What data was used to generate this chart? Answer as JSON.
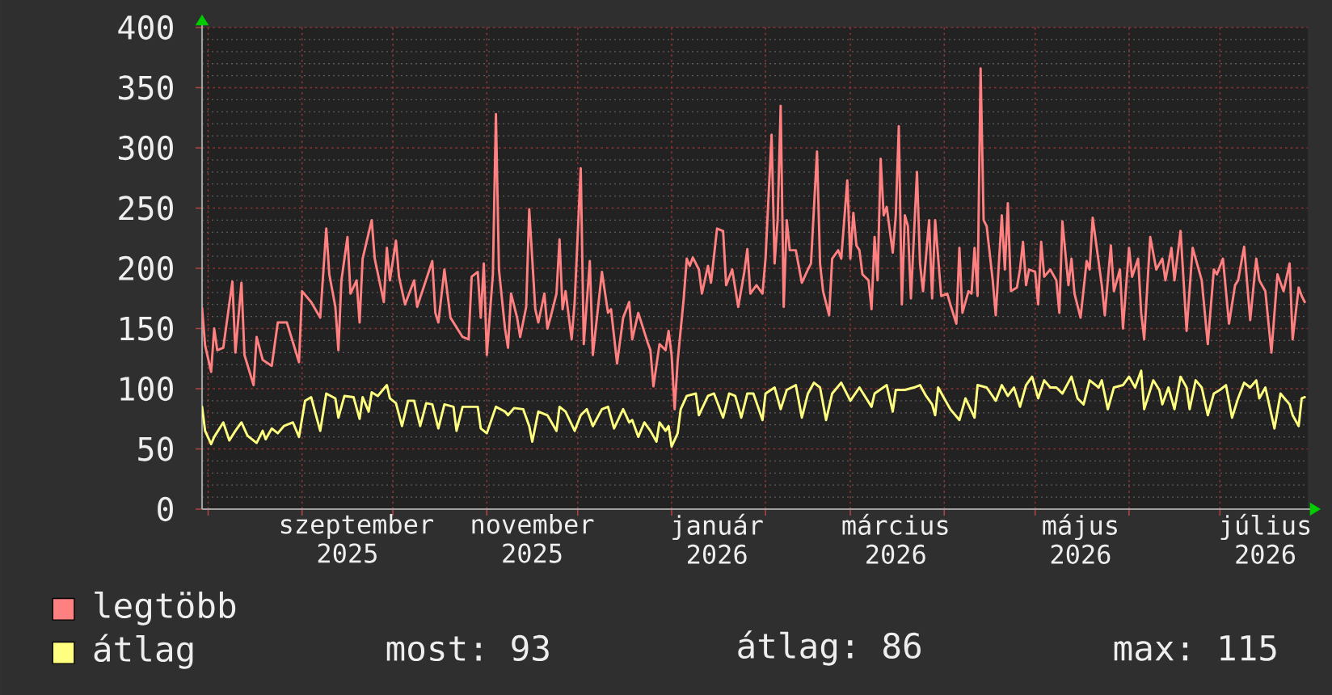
{
  "chart_data": {
    "type": "line",
    "xlim": [
      "2025-07-30",
      "2026-07-30"
    ],
    "xticks": [
      {
        "value": "2025-08-01",
        "label": null
      },
      {
        "value": "2025-09-01",
        "label": null
      },
      {
        "value": "2025-09-16",
        "label": "szeptember 2025"
      },
      {
        "value": "2025-10-01",
        "label": null
      },
      {
        "value": "2025-11-01",
        "label": null
      },
      {
        "value": "2025-11-16",
        "label": "november 2025"
      },
      {
        "value": "2025-12-01",
        "label": null
      },
      {
        "value": "2026-01-01",
        "label": null
      },
      {
        "value": "2026-01-16",
        "label": "január 2026"
      },
      {
        "value": "2026-02-01",
        "label": null
      },
      {
        "value": "2026-03-01",
        "label": null
      },
      {
        "value": "2026-03-16",
        "label": "március 2026"
      },
      {
        "value": "2026-04-01",
        "label": null
      },
      {
        "value": "2026-05-01",
        "label": null
      },
      {
        "value": "2026-05-16",
        "label": "május 2026"
      },
      {
        "value": "2026-06-01",
        "label": null
      },
      {
        "value": "2026-07-01",
        "label": null
      },
      {
        "value": "2026-07-16",
        "label": "július 2026"
      }
    ],
    "ylim": [
      0,
      400
    ],
    "yticks": [
      0,
      50,
      100,
      150,
      200,
      250,
      300,
      350,
      400
    ],
    "grid": true,
    "legend": "bottom left",
    "series": [
      {
        "name": "legtöbb",
        "color": "#ff8080",
        "x": [
          "2025-07-30",
          "2025-07-31",
          "2025-08-02",
          "2025-08-03",
          "2025-08-04",
          "2025-08-06",
          "2025-08-09",
          "2025-08-10",
          "2025-08-12",
          "2025-08-13",
          "2025-08-16",
          "2025-08-17",
          "2025-08-19",
          "2025-08-22",
          "2025-08-24",
          "2025-08-27",
          "2025-08-31",
          "2025-09-01",
          "2025-09-04",
          "2025-09-07",
          "2025-09-09",
          "2025-09-10",
          "2025-09-12",
          "2025-09-13",
          "2025-09-14",
          "2025-09-16",
          "2025-09-17",
          "2025-09-19",
          "2025-09-20",
          "2025-09-21",
          "2025-09-24",
          "2025-09-25",
          "2025-09-28",
          "2025-09-29",
          "2025-09-30",
          "2025-10-02",
          "2025-10-03",
          "2025-10-05",
          "2025-10-08",
          "2025-10-09",
          "2025-10-14",
          "2025-10-15",
          "2025-10-16",
          "2025-10-18",
          "2025-10-20",
          "2025-10-24",
          "2025-10-26",
          "2025-10-27",
          "2025-10-29",
          "2025-10-30",
          "2025-10-31",
          "2025-11-01",
          "2025-11-03",
          "2025-11-04",
          "2025-11-05",
          "2025-11-07",
          "2025-11-08",
          "2025-11-09",
          "2025-11-11",
          "2025-11-12",
          "2025-11-14",
          "2025-11-15",
          "2025-11-17",
          "2025-11-18",
          "2025-11-20",
          "2025-11-21",
          "2025-11-22",
          "2025-11-24",
          "2025-11-25",
          "2025-11-26",
          "2025-11-27",
          "2025-11-29",
          "2025-11-30",
          "2025-12-02",
          "2025-12-03",
          "2025-12-05",
          "2025-12-06",
          "2025-12-09",
          "2025-12-11",
          "2025-12-12",
          "2025-12-14",
          "2025-12-16",
          "2025-12-18",
          "2025-12-19",
          "2025-12-21",
          "2025-12-24",
          "2025-12-25",
          "2025-12-26",
          "2025-12-28",
          "2025-12-30",
          "2025-12-31",
          "2026-01-01",
          "2026-01-02",
          "2026-01-03",
          "2026-01-05",
          "2026-01-06",
          "2026-01-07",
          "2026-01-08",
          "2026-01-10",
          "2026-01-11",
          "2026-01-13",
          "2026-01-14",
          "2026-01-16",
          "2026-01-18",
          "2026-01-19",
          "2026-01-21",
          "2026-01-23",
          "2026-01-25",
          "2026-01-26",
          "2026-01-27",
          "2026-01-29",
          "2026-01-31",
          "2026-02-01",
          "2026-02-03",
          "2026-02-04",
          "2026-02-05",
          "2026-02-06",
          "2026-02-07",
          "2026-02-08",
          "2026-02-09",
          "2026-02-11",
          "2026-02-13",
          "2026-02-15",
          "2026-02-16",
          "2026-02-18",
          "2026-02-19",
          "2026-02-20",
          "2026-02-22",
          "2026-02-23",
          "2026-02-25",
          "2026-02-26",
          "2026-02-28",
          "2026-03-01",
          "2026-03-02",
          "2026-03-03",
          "2026-03-04",
          "2026-03-05",
          "2026-03-07",
          "2026-03-08",
          "2026-03-09",
          "2026-03-10",
          "2026-03-11",
          "2026-03-12",
          "2026-03-13",
          "2026-03-15",
          "2026-03-16",
          "2026-03-17",
          "2026-03-18",
          "2026-03-19",
          "2026-03-20",
          "2026-03-21",
          "2026-03-23",
          "2026-03-24",
          "2026-03-25",
          "2026-03-27",
          "2026-03-28",
          "2026-03-29",
          "2026-03-31",
          "2026-04-02",
          "2026-04-03",
          "2026-04-05",
          "2026-04-06",
          "2026-04-07",
          "2026-04-09",
          "2026-04-10",
          "2026-04-11",
          "2026-04-12",
          "2026-04-13",
          "2026-04-14",
          "2026-04-15",
          "2026-04-17",
          "2026-04-18",
          "2026-04-20",
          "2026-04-21",
          "2026-04-22",
          "2026-04-23",
          "2026-04-25",
          "2026-04-26",
          "2026-04-27",
          "2026-04-28",
          "2026-04-29",
          "2026-05-01",
          "2026-05-02",
          "2026-05-03",
          "2026-05-04",
          "2026-05-06",
          "2026-05-08",
          "2026-05-09",
          "2026-05-10",
          "2026-05-12",
          "2026-05-13",
          "2026-05-14",
          "2026-05-16",
          "2026-05-18",
          "2026-05-19",
          "2026-05-20",
          "2026-05-23",
          "2026-05-24",
          "2026-05-26",
          "2026-05-27",
          "2026-05-29",
          "2026-05-30",
          "2026-06-01",
          "2026-06-02",
          "2026-06-04",
          "2026-06-05",
          "2026-06-06",
          "2026-06-08",
          "2026-06-10",
          "2026-06-12",
          "2026-06-13",
          "2026-06-15",
          "2026-06-16",
          "2026-06-18",
          "2026-06-19",
          "2026-06-20",
          "2026-06-22",
          "2026-06-23",
          "2026-06-25",
          "2026-06-27",
          "2026-06-29",
          "2026-06-30",
          "2026-07-02",
          "2026-07-04",
          "2026-07-06",
          "2026-07-07",
          "2026-07-09",
          "2026-07-11",
          "2026-07-13",
          "2026-07-14",
          "2026-07-16",
          "2026-07-18",
          "2026-07-20",
          "2026-07-22",
          "2026-07-24",
          "2026-07-25",
          "2026-07-27",
          "2026-07-28",
          "2026-07-29"
        ],
        "values": [
          167,
          136,
          114,
          150,
          132,
          134,
          189,
          130,
          188,
          128,
          103,
          143,
          124,
          119,
          155,
          155,
          122,
          181,
          172,
          159,
          233,
          195,
          168,
          132,
          190,
          226,
          179,
          190,
          155,
          208,
          240,
          208,
          172,
          217,
          190,
          223,
          193,
          170,
          190,
          168,
          206,
          163,
          155,
          199,
          159,
          143,
          141,
          193,
          197,
          159,
          204,
          128,
          195,
          328,
          199,
          150,
          134,
          179,
          159,
          143,
          168,
          249,
          166,
          155,
          179,
          150,
          159,
          179,
          224,
          166,
          181,
          141,
          172,
          283,
          137,
          206,
          128,
          197,
          163,
          166,
          121,
          159,
          172,
          141,
          163,
          139,
          132,
          102,
          137,
          132,
          148,
          128,
          83,
          123,
          175,
          208,
          202,
          209,
          199,
          179,
          202,
          188,
          233,
          231,
          186,
          199,
          168,
          197,
          216,
          179,
          186,
          179,
          208,
          311,
          204,
          240,
          335,
          168,
          240,
          215,
          215,
          188,
          199,
          204,
          297,
          204,
          181,
          161,
          208,
          215,
          208,
          273,
          208,
          246,
          219,
          215,
          195,
          190,
          166,
          226,
          190,
          291,
          244,
          251,
          213,
          244,
          318,
          170,
          244,
          235,
          175,
          280,
          204,
          181,
          240,
          175,
          240,
          177,
          179,
          170,
          154,
          217,
          163,
          181,
          179,
          217,
          177,
          366,
          240,
          235,
          190,
          161,
          244,
          199,
          254,
          181,
          184,
          199,
          222,
          186,
          199,
          197,
          170,
          222,
          193,
          199,
          190,
          163,
          239,
          186,
          208,
          179,
          159,
          206,
          199,
          242,
          186,
          161,
          219,
          181,
          199,
          150,
          217,
          193,
          208,
          163,
          141,
          226,
          199,
          208,
          190,
          217,
          190,
          231,
          190,
          148,
          217,
          208,
          190,
          137,
          199,
          195,
          208,
          154,
          186,
          190,
          218,
          157,
          208,
          190,
          181,
          130,
          195,
          181,
          204,
          141,
          184,
          177,
          172
        ]
      },
      {
        "name": "átlag",
        "color": "#ffff80",
        "x": [
          "2025-07-30",
          "2025-07-31",
          "2025-08-02",
          "2025-08-03",
          "2025-08-06",
          "2025-08-08",
          "2025-08-10",
          "2025-08-12",
          "2025-08-14",
          "2025-08-17",
          "2025-08-19",
          "2025-08-20",
          "2025-08-22",
          "2025-08-24",
          "2025-08-26",
          "2025-08-29",
          "2025-08-31",
          "2025-09-02",
          "2025-09-04",
          "2025-09-07",
          "2025-09-09",
          "2025-09-12",
          "2025-09-13",
          "2025-09-15",
          "2025-09-18",
          "2025-09-20",
          "2025-09-21",
          "2025-09-23",
          "2025-09-24",
          "2025-09-26",
          "2025-09-29",
          "2025-09-30",
          "2025-10-02",
          "2025-10-04",
          "2025-10-06",
          "2025-10-08",
          "2025-10-10",
          "2025-10-12",
          "2025-10-14",
          "2025-10-16",
          "2025-10-18",
          "2025-10-21",
          "2025-10-22",
          "2025-10-24",
          "2025-10-27",
          "2025-10-29",
          "2025-10-30",
          "2025-11-01",
          "2025-11-04",
          "2025-11-07",
          "2025-11-08",
          "2025-11-10",
          "2025-11-13",
          "2025-11-15",
          "2025-11-16",
          "2025-11-18",
          "2025-11-21",
          "2025-11-24",
          "2025-11-25",
          "2025-11-27",
          "2025-11-30",
          "2025-12-02",
          "2025-12-04",
          "2025-12-06",
          "2025-12-09",
          "2025-12-11",
          "2025-12-13",
          "2025-12-16",
          "2025-12-18",
          "2025-12-19",
          "2025-12-21",
          "2025-12-23",
          "2025-12-25",
          "2025-12-27",
          "2025-12-28",
          "2025-12-30",
          "2025-12-31",
          "2026-01-01",
          "2026-01-03",
          "2026-01-04",
          "2026-01-06",
          "2026-01-09",
          "2026-01-10",
          "2026-01-13",
          "2026-01-15",
          "2026-01-18",
          "2026-01-20",
          "2026-01-22",
          "2026-01-24",
          "2026-01-26",
          "2026-01-28",
          "2026-01-31",
          "2026-02-01",
          "2026-02-04",
          "2026-02-06",
          "2026-02-08",
          "2026-02-11",
          "2026-02-13",
          "2026-02-15",
          "2026-02-17",
          "2026-02-19",
          "2026-02-21",
          "2026-02-23",
          "2026-02-26",
          "2026-03-01",
          "2026-03-04",
          "2026-03-08",
          "2026-03-09",
          "2026-03-13",
          "2026-03-15",
          "2026-03-16",
          "2026-03-19",
          "2026-03-22",
          "2026-03-24",
          "2026-03-26",
          "2026-03-28",
          "2026-03-29",
          "2026-03-30",
          "2026-04-01",
          "2026-04-03",
          "2026-04-06",
          "2026-04-08",
          "2026-04-11",
          "2026-04-12",
          "2026-04-15",
          "2026-04-18",
          "2026-04-20",
          "2026-04-22",
          "2026-04-24",
          "2026-04-26",
          "2026-04-28",
          "2026-04-30",
          "2026-05-02",
          "2026-05-04",
          "2026-05-06",
          "2026-05-08",
          "2026-05-10",
          "2026-05-13",
          "2026-05-15",
          "2026-05-17",
          "2026-05-19",
          "2026-05-22",
          "2026-05-23",
          "2026-05-25",
          "2026-05-27",
          "2026-05-30",
          "2026-06-01",
          "2026-06-03",
          "2026-06-05",
          "2026-06-06",
          "2026-06-09",
          "2026-06-11",
          "2026-06-12",
          "2026-06-14",
          "2026-06-16",
          "2026-06-18",
          "2026-06-20",
          "2026-06-21",
          "2026-06-23",
          "2026-06-25",
          "2026-06-27",
          "2026-06-29",
          "2026-07-01",
          "2026-07-03",
          "2026-07-05",
          "2026-07-07",
          "2026-07-09",
          "2026-07-11",
          "2026-07-13",
          "2026-07-14",
          "2026-07-16",
          "2026-07-19",
          "2026-07-21",
          "2026-07-24",
          "2026-07-25",
          "2026-07-27",
          "2026-07-28",
          "2026-07-29"
        ],
        "values": [
          85,
          65,
          54,
          60,
          72,
          57,
          65,
          72,
          61,
          55,
          65,
          58,
          67,
          63,
          69,
          72,
          60,
          90,
          93,
          65,
          96,
          92,
          76,
          94,
          93,
          75,
          93,
          81,
          97,
          94,
          103,
          92,
          88,
          69,
          90,
          90,
          69,
          88,
          87,
          67,
          87,
          85,
          65,
          85,
          85,
          85,
          67,
          63,
          85,
          81,
          78,
          84,
          83,
          69,
          56,
          81,
          78,
          65,
          85,
          81,
          65,
          78,
          83,
          69,
          83,
          85,
          67,
          83,
          72,
          74,
          60,
          72,
          65,
          56,
          72,
          65,
          69,
          52,
          63,
          83,
          94,
          96,
          78,
          94,
          96,
          76,
          96,
          94,
          76,
          96,
          96,
          74,
          96,
          101,
          83,
          99,
          103,
          76,
          96,
          105,
          101,
          74,
          96,
          105,
          90,
          101,
          85,
          96,
          103,
          81,
          99,
          99,
          101,
          103,
          94,
          87,
          78,
          101,
          92,
          83,
          74,
          92,
          76,
          103,
          101,
          90,
          103,
          94,
          101,
          85,
          103,
          110,
          92,
          107,
          101,
          101,
          96,
          110,
          92,
          87,
          107,
          101,
          107,
          83,
          101,
          103,
          110,
          101,
          115,
          83,
          107,
          99,
          87,
          101,
          83,
          110,
          101,
          83,
          107,
          101,
          78,
          96,
          99,
          103,
          76,
          92,
          105,
          101,
          107,
          92,
          101,
          67,
          96,
          87,
          78,
          69,
          92,
          93
        ]
      }
    ],
    "annotations": [
      "most: 93",
      "átlag: 86",
      "max: 115"
    ]
  }
}
